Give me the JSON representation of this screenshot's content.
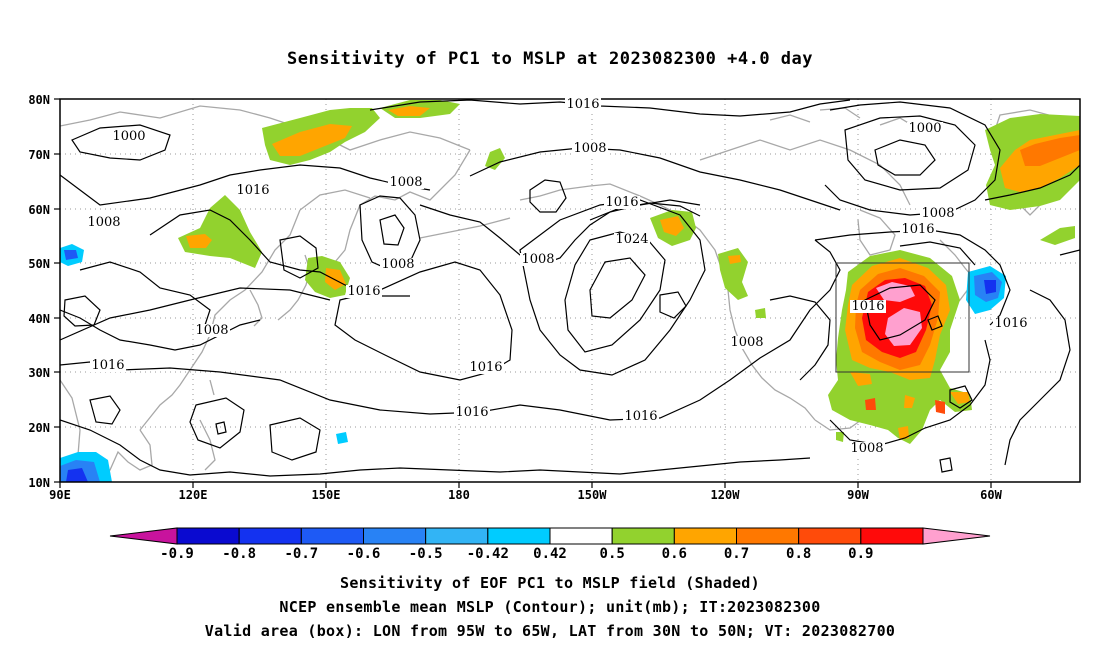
{
  "title": "Sensitivity of PC1 to MSLP at 2023082300 +4.0 day",
  "map": {
    "lat_ticks": [
      "80N",
      "70N",
      "60N",
      "50N",
      "40N",
      "30N",
      "20N",
      "10N"
    ],
    "lon_ticks": [
      "90E",
      "120E",
      "150E",
      "180",
      "150W",
      "120W",
      "90W",
      "60W"
    ],
    "lon_extent": [
      "90E",
      "45W"
    ],
    "lat_extent": [
      "10N",
      "80N"
    ],
    "grid": "dotted",
    "coastline_color": "#a8a8a8",
    "box_region": {
      "lon": [
        "95W",
        "65W"
      ],
      "lat": [
        "30N",
        "50N"
      ]
    }
  },
  "contour_labels": [
    {
      "text": "1016",
      "name": "contour-label-1016-north-pacific"
    },
    {
      "text": "1000",
      "name": "contour-label-1000-siberia"
    },
    {
      "text": "1000",
      "name": "contour-label-1000-canada"
    },
    {
      "text": "1008",
      "name": "contour-label-1008-arctic"
    },
    {
      "text": "1016",
      "name": "contour-label-1016-mongolia"
    },
    {
      "text": "1008",
      "name": "contour-label-1008-okhotsk"
    },
    {
      "text": "1008",
      "name": "contour-label-1008-central-asia"
    },
    {
      "text": "1008",
      "name": "contour-label-1008-bering"
    },
    {
      "text": "1016",
      "name": "contour-label-1016-gulf-alaska"
    },
    {
      "text": "1024",
      "name": "contour-label-1024-pacific-high"
    },
    {
      "text": "1008",
      "name": "contour-label-1008-aleutian"
    },
    {
      "text": "1008",
      "name": "contour-label-1008-hudson"
    },
    {
      "text": "1016",
      "name": "contour-label-1016-labrador"
    },
    {
      "text": "1016",
      "name": "contour-label-1016-japan"
    },
    {
      "text": "1008",
      "name": "contour-label-1008-china"
    },
    {
      "text": "1016",
      "name": "contour-label-1016-india"
    },
    {
      "text": "1016",
      "name": "contour-label-1016-mid-pacific"
    },
    {
      "text": "1008",
      "name": "contour-label-1008-california"
    },
    {
      "text": "1016",
      "name": "contour-label-1016-us-east"
    },
    {
      "text": "1016",
      "name": "contour-label-1016-atlantic"
    },
    {
      "text": "1016",
      "name": "contour-label-1016-subtropical-west"
    },
    {
      "text": "1016",
      "name": "contour-label-1016-subtropical-east"
    },
    {
      "text": "1008",
      "name": "contour-label-1008-gulf-mexico"
    }
  ],
  "colorbar": {
    "labels": [
      "-0.9",
      "-0.8",
      "-0.7",
      "-0.6",
      "-0.5",
      "-0.42",
      "0.42",
      "0.5",
      "0.6",
      "0.7",
      "0.8",
      "0.9"
    ],
    "colors": [
      "#c8139d",
      "#0a0ad0",
      "#1432f0",
      "#1e5af5",
      "#2882f5",
      "#32b4f5",
      "#00ccff",
      "#ffffff",
      "#92d22e",
      "#ffa500",
      "#ff7800",
      "#ff4b0a",
      "#ff0a0a",
      "#ffa0cf"
    ]
  },
  "captions": {
    "line1": "Sensitivity of EOF PC1 to MSLP field (Shaded)",
    "line2": "NCEP ensemble mean MSLP (Contour); unit(mb); IT:2023082300",
    "line3": "Valid area (box): LON from 95W to 65W, LAT from 30N to 50N; VT: 2023082700"
  }
}
